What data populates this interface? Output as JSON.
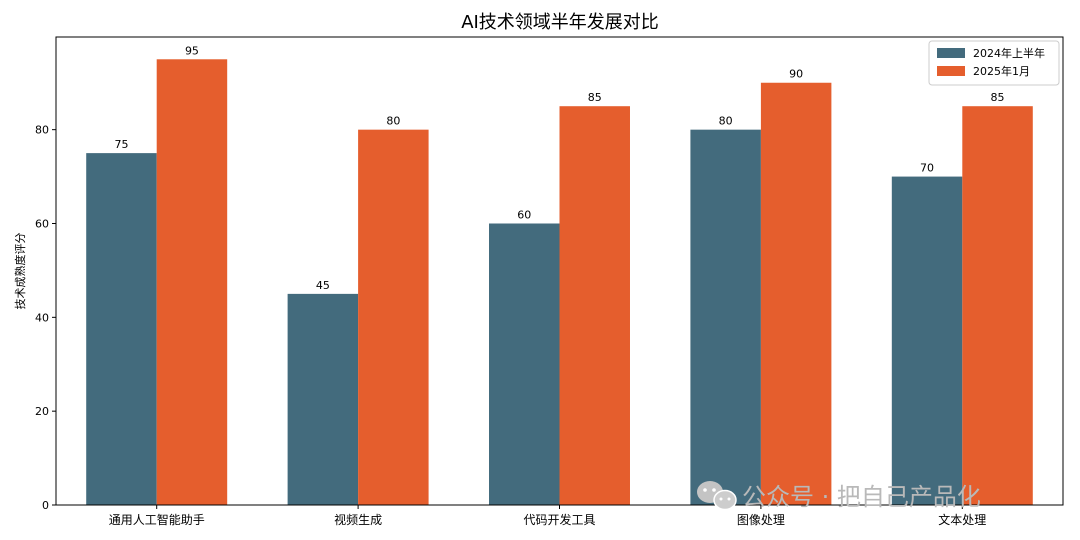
{
  "chart_data": {
    "type": "bar",
    "title": "AI技术领域半年发展对比",
    "xlabel": "",
    "ylabel": "技术成熟度评分",
    "categories": [
      "通用人工智能助手",
      "视频生成",
      "代码开发工具",
      "图像处理",
      "文本处理"
    ],
    "series": [
      {
        "name": "2024年上半年",
        "values": [
          75,
          45,
          60,
          80,
          70
        ],
        "color": "#436b7d"
      },
      {
        "name": "2025年1月",
        "values": [
          95,
          80,
          85,
          90,
          85
        ],
        "color": "#e55e2d"
      }
    ],
    "yticks": [
      0,
      20,
      40,
      60,
      80
    ],
    "ylim": [
      0,
      99.75
    ],
    "grid": false,
    "legend_position": "top-right",
    "data_labels": true
  },
  "watermark": {
    "icon": "wechat-icon",
    "text": "公众号 · 把自己产品化"
  }
}
